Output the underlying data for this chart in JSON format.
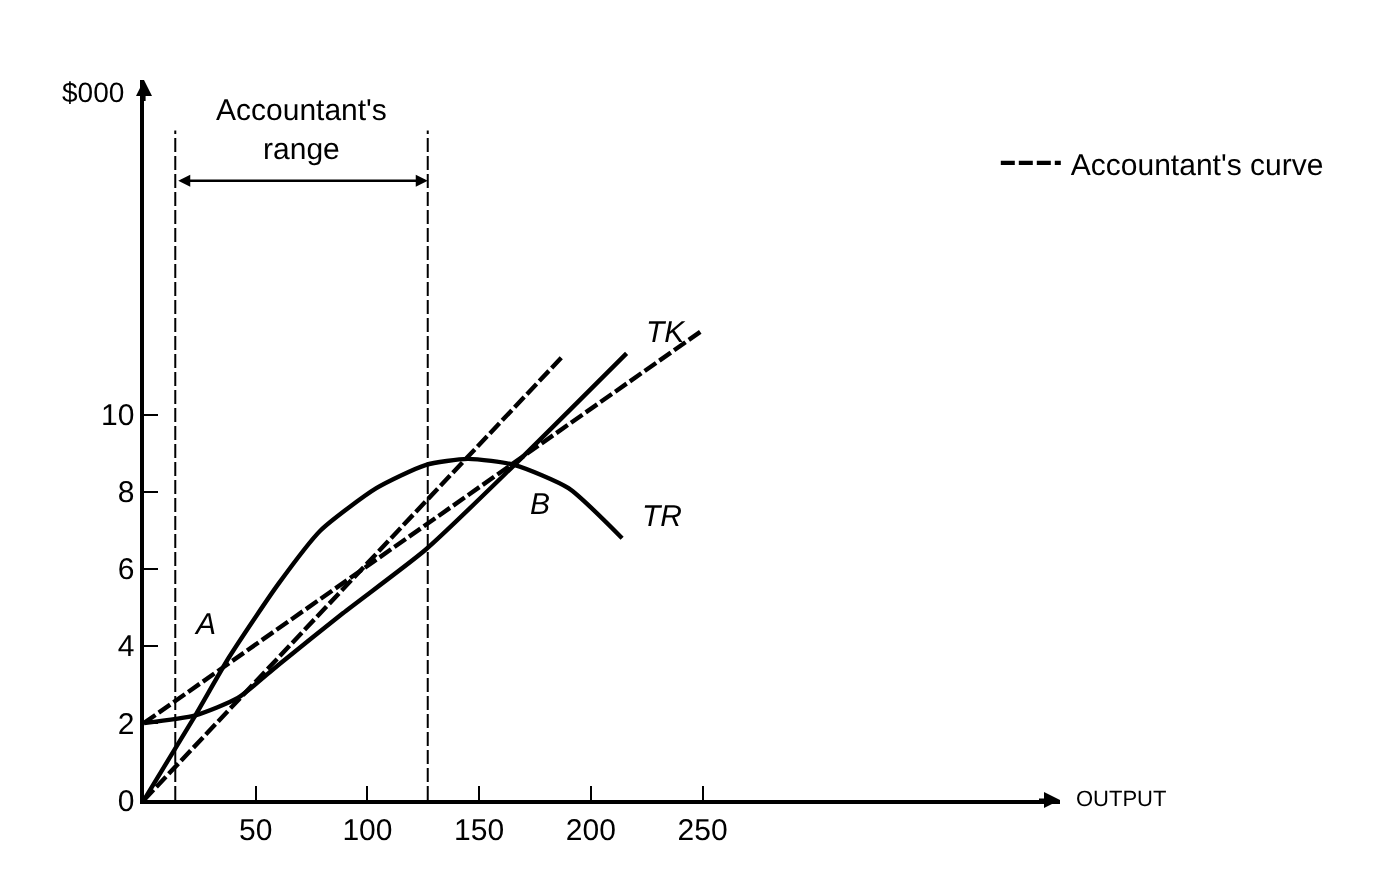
{
  "chart_data": {
    "type": "line",
    "xlabel": "OUTPUT",
    "ylabel": "$000",
    "xlim": [
      0,
      410
    ],
    "ylim": [
      0,
      18.7
    ],
    "xticks": [
      50,
      100,
      150,
      200,
      250
    ],
    "yticks": [
      0,
      2,
      4,
      6,
      8,
      10
    ],
    "legend": "top right",
    "marker": "none",
    "series": [
      {
        "name": "TR",
        "color": "#000000",
        "line_style": "solid",
        "x": [
          0,
          23,
          38,
          60,
          79,
          104,
          126,
          145,
          166,
          190,
          214
        ],
        "values": [
          0,
          2.2,
          3.7,
          5.6,
          7,
          8.1,
          8.7,
          8.86,
          8.7,
          8.1,
          6.8
        ]
      },
      {
        "name": "TK",
        "color": "#000000",
        "line_style": "solid",
        "x": [
          0,
          23,
          42,
          60,
          89,
          126,
          164,
          216
        ],
        "values": [
          2,
          2.2,
          2.65,
          3.5,
          4.85,
          6.5,
          8.6,
          11.6
        ]
      },
      {
        "name": "Accountant's curve",
        "color": "#000000",
        "line_style": "dashed",
        "x": [
          0,
          187
        ],
        "values": [
          0,
          11.5
        ]
      },
      {
        "color": "#000000",
        "line_style": "dashed",
        "x": [
          0,
          250
        ],
        "values": [
          2,
          12.2
        ]
      }
    ],
    "ref_lines": [
      {
        "axis": "x",
        "value": 14,
        "line_style": "dashed",
        "color": "#000000"
      },
      {
        "axis": "x",
        "value": 127,
        "line_style": "dashed",
        "color": "#000000"
      }
    ],
    "annotations": [
      "Accountant's range",
      {
        "text": "A",
        "x": 38,
        "y": 3.7
      },
      {
        "text": "B",
        "x": 166,
        "y": 8.7
      }
    ]
  }
}
